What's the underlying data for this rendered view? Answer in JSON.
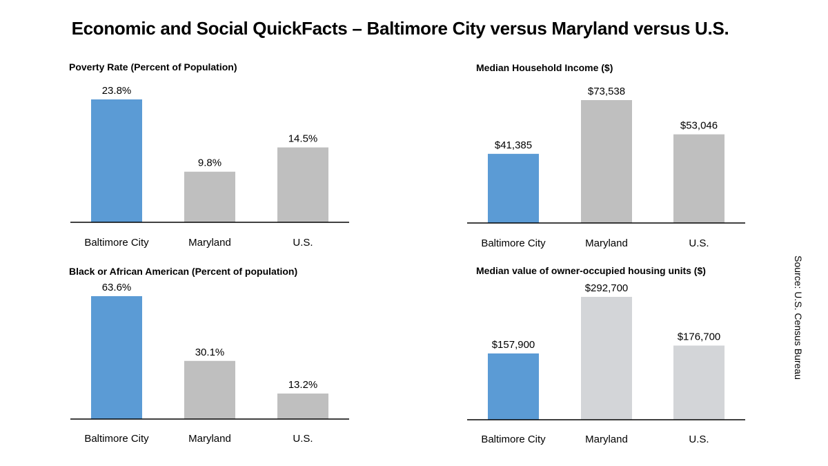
{
  "title": "Economic and Social QuickFacts – Baltimore City versus Maryland versus U.S.",
  "source": "Source: U.S. Census Bureau",
  "colors": {
    "highlight": "#5b9bd5",
    "gray": "#bfbfbf",
    "light_gray": "#d3d5d8",
    "axis": "#000000"
  },
  "chart_data": [
    {
      "type": "bar",
      "title": "Poverty Rate (Percent of Population)",
      "categories": [
        "Baltimore City",
        "Maryland",
        "U.S."
      ],
      "values": [
        23.8,
        9.8,
        14.5
      ],
      "value_labels": [
        "23.8%",
        "9.8%",
        "14.5%"
      ],
      "bar_colors": [
        "#5b9bd5",
        "#bfbfbf",
        "#bfbfbf"
      ],
      "ylim": [
        0,
        23.8
      ]
    },
    {
      "type": "bar",
      "title": "Median Household Income ($)",
      "categories": [
        "Baltimore City",
        "Maryland",
        "U.S."
      ],
      "values": [
        41385,
        73538,
        53046
      ],
      "value_labels": [
        "$41,385",
        "$73,538",
        "$53,046"
      ],
      "bar_colors": [
        "#5b9bd5",
        "#bfbfbf",
        "#bfbfbf"
      ],
      "ylim": [
        0,
        73538
      ]
    },
    {
      "type": "bar",
      "title": "Black or African American (Percent of population)",
      "categories": [
        "Baltimore City",
        "Maryland",
        "U.S."
      ],
      "values": [
        63.6,
        30.1,
        13.2
      ],
      "value_labels": [
        "63.6%",
        "30.1%",
        "13.2%"
      ],
      "bar_colors": [
        "#5b9bd5",
        "#bfbfbf",
        "#bfbfbf"
      ],
      "ylim": [
        0,
        63.6
      ]
    },
    {
      "type": "bar",
      "title": "Median value of owner-occupied housing units ($)",
      "categories": [
        "Baltimore City",
        "Maryland",
        "U.S."
      ],
      "values": [
        157900,
        292700,
        176700
      ],
      "value_labels": [
        "$157,900",
        "$292,700",
        "$176,700"
      ],
      "bar_colors": [
        "#5b9bd5",
        "#d3d5d8",
        "#d3d5d8"
      ],
      "ylim": [
        0,
        292700
      ]
    }
  ]
}
